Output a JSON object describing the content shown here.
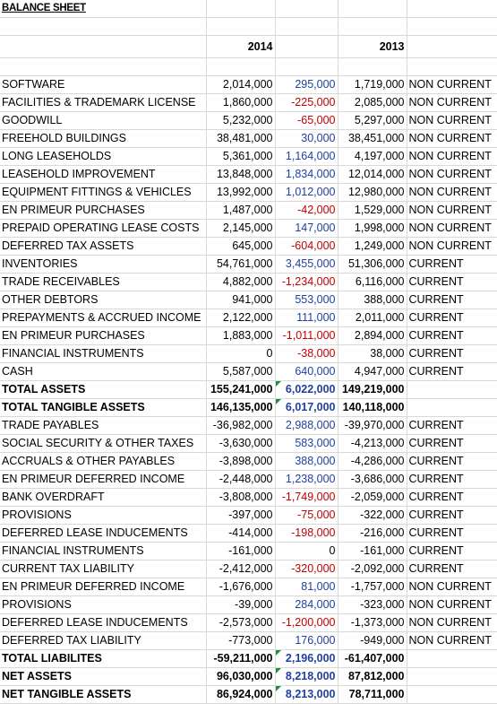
{
  "sheet": {
    "title": "BALANCE SHEET",
    "columns": {
      "year_a": "2014",
      "year_b": "2013"
    }
  },
  "rows": [
    {
      "label": "SOFTWARE",
      "y2014": "2,014,000",
      "change": "295,000",
      "y2013": "1,719,000",
      "cls": "NON CURRENT",
      "sign": "pos",
      "bold": false
    },
    {
      "label": "FACILITIES & TRADEMARK LICENSE",
      "y2014": "1,860,000",
      "change": "-225,000",
      "y2013": "2,085,000",
      "cls": "NON CURRENT",
      "sign": "neg",
      "bold": false
    },
    {
      "label": "GOODWILL",
      "y2014": "5,232,000",
      "change": "-65,000",
      "y2013": "5,297,000",
      "cls": "NON CURRENT",
      "sign": "neg",
      "bold": false
    },
    {
      "label": "FREEHOLD BUILDINGS",
      "y2014": "38,481,000",
      "change": "30,000",
      "y2013": "38,451,000",
      "cls": "NON CURRENT",
      "sign": "pos",
      "bold": false
    },
    {
      "label": "LONG LEASEHOLDS",
      "y2014": "5,361,000",
      "change": "1,164,000",
      "y2013": "4,197,000",
      "cls": "NON CURRENT",
      "sign": "pos",
      "bold": false
    },
    {
      "label": "LEASEHOLD IMPROVEMENT",
      "y2014": "13,848,000",
      "change": "1,834,000",
      "y2013": "12,014,000",
      "cls": "NON CURRENT",
      "sign": "pos",
      "bold": false
    },
    {
      "label": "EQUIPMENT FITTINGS & VEHICLES",
      "y2014": "13,992,000",
      "change": "1,012,000",
      "y2013": "12,980,000",
      "cls": "NON CURRENT",
      "sign": "pos",
      "bold": false
    },
    {
      "label": "EN PRIMEUR PURCHASES",
      "y2014": "1,487,000",
      "change": "-42,000",
      "y2013": "1,529,000",
      "cls": "NON CURRENT",
      "sign": "neg",
      "bold": false
    },
    {
      "label": "PREPAID OPERATING LEASE COSTS",
      "y2014": "2,145,000",
      "change": "147,000",
      "y2013": "1,998,000",
      "cls": "NON CURRENT",
      "sign": "pos",
      "bold": false
    },
    {
      "label": "DEFERRED TAX ASSETS",
      "y2014": "645,000",
      "change": "-604,000",
      "y2013": "1,249,000",
      "cls": "NON CURRENT",
      "sign": "neg",
      "bold": false
    },
    {
      "label": "INVENTORIES",
      "y2014": "54,761,000",
      "change": "3,455,000",
      "y2013": "51,306,000",
      "cls": "CURRENT",
      "sign": "pos",
      "bold": false
    },
    {
      "label": "TRADE RECEIVABLES",
      "y2014": "4,882,000",
      "change": "-1,234,000",
      "y2013": "6,116,000",
      "cls": "CURRENT",
      "sign": "neg",
      "bold": false
    },
    {
      "label": "OTHER DEBTORS",
      "y2014": "941,000",
      "change": "553,000",
      "y2013": "388,000",
      "cls": "CURRENT",
      "sign": "pos",
      "bold": false
    },
    {
      "label": "PREPAYMENTS & ACCRUED INCOME",
      "y2014": "2,122,000",
      "change": "111,000",
      "y2013": "2,011,000",
      "cls": "CURRENT",
      "sign": "pos",
      "bold": false
    },
    {
      "label": "EN PRIMEUR PURCHASES",
      "y2014": "1,883,000",
      "change": "-1,011,000",
      "y2013": "2,894,000",
      "cls": "CURRENT",
      "sign": "neg",
      "bold": false
    },
    {
      "label": "FINANCIAL INSTRUMENTS",
      "y2014": "0",
      "change": "-38,000",
      "y2013": "38,000",
      "cls": "CURRENT",
      "sign": "neg",
      "bold": false
    },
    {
      "label": "CASH",
      "y2014": "5,587,000",
      "change": "640,000",
      "y2013": "4,947,000",
      "cls": "CURRENT",
      "sign": "pos",
      "bold": false
    },
    {
      "label": "TOTAL ASSETS",
      "y2014": "155,241,000",
      "change": "6,022,000",
      "y2013": "149,219,000",
      "cls": "",
      "sign": "pos",
      "bold": true,
      "flag": true
    },
    {
      "label": "TOTAL TANGIBLE ASSETS",
      "y2014": "146,135,000",
      "change": "6,017,000",
      "y2013": "140,118,000",
      "cls": "",
      "sign": "pos",
      "bold": true,
      "flag": true
    },
    {
      "label": "TRADE PAYABLES",
      "y2014": "-36,982,000",
      "change": "2,988,000",
      "y2013": "-39,970,000",
      "cls": "CURRENT",
      "sign": "pos",
      "bold": false
    },
    {
      "label": "SOCIAL SECURITY & OTHER TAXES",
      "y2014": "-3,630,000",
      "change": "583,000",
      "y2013": "-4,213,000",
      "cls": "CURRENT",
      "sign": "pos",
      "bold": false
    },
    {
      "label": "ACCRUALS & OTHER PAYABLES",
      "y2014": "-3,898,000",
      "change": "388,000",
      "y2013": "-4,286,000",
      "cls": "CURRENT",
      "sign": "pos",
      "bold": false
    },
    {
      "label": "EN PRIMEUR DEFERRED INCOME",
      "y2014": "-2,448,000",
      "change": "1,238,000",
      "y2013": "-3,686,000",
      "cls": "CURRENT",
      "sign": "pos",
      "bold": false
    },
    {
      "label": "BANK OVERDRAFT",
      "y2014": "-3,808,000",
      "change": "-1,749,000",
      "y2013": "-2,059,000",
      "cls": "CURRENT",
      "sign": "neg",
      "bold": false
    },
    {
      "label": "PROVISIONS",
      "y2014": "-397,000",
      "change": "-75,000",
      "y2013": "-322,000",
      "cls": "CURRENT",
      "sign": "neg",
      "bold": false
    },
    {
      "label": "DEFERRED LEASE INDUCEMENTS",
      "y2014": "-414,000",
      "change": "-198,000",
      "y2013": "-216,000",
      "cls": "CURRENT",
      "sign": "neg",
      "bold": false
    },
    {
      "label": "FINANCIAL INSTRUMENTS",
      "y2014": "-161,000",
      "change": "0",
      "y2013": "-161,000",
      "cls": "CURRENT",
      "sign": "zero",
      "bold": false
    },
    {
      "label": "CURRENT TAX LIABILITY",
      "y2014": "-2,412,000",
      "change": "-320,000",
      "y2013": "-2,092,000",
      "cls": "CURRENT",
      "sign": "neg",
      "bold": false
    },
    {
      "label": "EN PRIMEUR DEFERRED INCOME",
      "y2014": "-1,676,000",
      "change": "81,000",
      "y2013": "-1,757,000",
      "cls": "NON CURRENT",
      "sign": "pos",
      "bold": false
    },
    {
      "label": "PROVISIONS",
      "y2014": "-39,000",
      "change": "284,000",
      "y2013": "-323,000",
      "cls": "NON CURRENT",
      "sign": "pos",
      "bold": false
    },
    {
      "label": "DEFERRED LEASE INDUCEMENTS",
      "y2014": "-2,573,000",
      "change": "-1,200,000",
      "y2013": "-1,373,000",
      "cls": "NON CURRENT",
      "sign": "neg",
      "bold": false
    },
    {
      "label": "DEFERRED TAX LIABILITY",
      "y2014": "-773,000",
      "change": "176,000",
      "y2013": "-949,000",
      "cls": "NON CURRENT",
      "sign": "pos",
      "bold": false
    },
    {
      "label": "TOTAL LIABILITES",
      "y2014": "-59,211,000",
      "change": "2,196,000",
      "y2013": "-61,407,000",
      "cls": "",
      "sign": "pos",
      "bold": true,
      "flag": true
    },
    {
      "label": "NET ASSETS",
      "y2014": "96,030,000",
      "change": "8,218,000",
      "y2013": "87,812,000",
      "cls": "",
      "sign": "pos",
      "bold": true,
      "flag": true
    },
    {
      "label": "NET TANGIBLE ASSETS",
      "y2014": "86,924,000",
      "change": "8,213,000",
      "y2013": "78,711,000",
      "cls": "",
      "sign": "pos",
      "bold": true,
      "flag": true
    }
  ],
  "colors": {
    "positive": "#1f3fa0",
    "negative": "#c00000",
    "flag": "#1e8f3a",
    "gridline": "#d9d9d9"
  }
}
